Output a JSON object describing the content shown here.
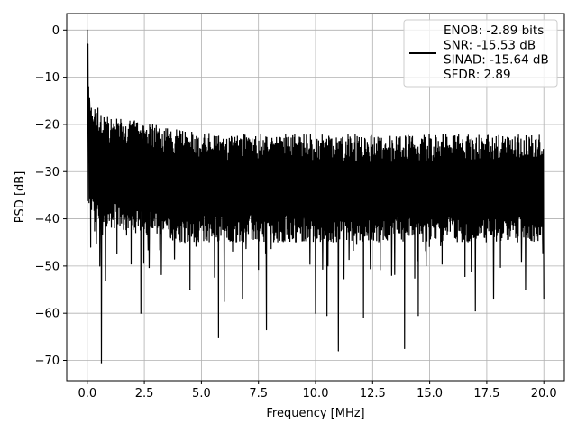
{
  "chart_data": {
    "type": "line",
    "xlabel": "Frequency [MHz]",
    "ylabel": "PSD [dB]",
    "xlim": [
      -0.9,
      20.9
    ],
    "ylim": [
      -74.3,
      3.5
    ],
    "x_ticks": [
      0.0,
      2.5,
      5.0,
      7.5,
      10.0,
      12.5,
      15.0,
      17.5,
      20.0
    ],
    "x_tick_labels": [
      "0.0",
      "2.5",
      "5.0",
      "7.5",
      "10.0",
      "12.5",
      "15.0",
      "17.5",
      "20.0"
    ],
    "y_ticks": [
      0,
      -10,
      -20,
      -30,
      -40,
      -50,
      -60,
      -70
    ],
    "y_tick_labels": [
      "0",
      "−10",
      "−20",
      "−30",
      "−40",
      "−50",
      "−60",
      "−70"
    ],
    "grid": true,
    "legend_position": "top-right",
    "series": [
      {
        "line_color": "#000000",
        "legend_lines": [
          "ENOB: -2.89 bits",
          "SNR: -15.53 dB",
          "SINAD: -15.64 dB",
          "SFDR: 2.89"
        ],
        "x_range": [
          0.0,
          20.0
        ],
        "band_upper": [
          -15,
          -18,
          -19,
          -20,
          -21,
          -21.5,
          -22,
          -22,
          -22,
          -22,
          -22,
          -22,
          -22,
          -22,
          -22,
          -22,
          -22,
          -22,
          -22,
          -22,
          -22
        ],
        "band_lower": [
          -40,
          -42,
          -43,
          -44,
          -45,
          -45,
          -45,
          -45,
          -45,
          -45,
          -45,
          -45,
          -45,
          -45,
          -45,
          -45,
          -45,
          -45,
          -45,
          -45,
          -45
        ],
        "spikes": [
          {
            "x": 0.0,
            "y": 0.0
          },
          {
            "x": 0.03,
            "y": -3.0
          },
          {
            "x": 0.06,
            "y": -12.0
          },
          {
            "x": 0.1,
            "y": -14.5
          },
          {
            "x": 0.15,
            "y": -46.0
          },
          {
            "x": 0.55,
            "y": -50.0
          },
          {
            "x": 0.62,
            "y": -70.5
          },
          {
            "x": 0.8,
            "y": -53.0
          },
          {
            "x": 2.35,
            "y": -60.0
          },
          {
            "x": 4.5,
            "y": -55.0
          },
          {
            "x": 5.75,
            "y": -65.2
          },
          {
            "x": 6.0,
            "y": -57.5
          },
          {
            "x": 6.8,
            "y": -57.0
          },
          {
            "x": 7.85,
            "y": -63.5
          },
          {
            "x": 10.0,
            "y": -60.0
          },
          {
            "x": 10.5,
            "y": -60.5
          },
          {
            "x": 11.0,
            "y": -68.0
          },
          {
            "x": 12.1,
            "y": -61.0
          },
          {
            "x": 13.9,
            "y": -67.5
          },
          {
            "x": 14.5,
            "y": -60.5
          },
          {
            "x": 17.0,
            "y": -59.5
          },
          {
            "x": 17.8,
            "y": -57.0
          },
          {
            "x": 19.2,
            "y": -55.0
          },
          {
            "x": 20.0,
            "y": -57.0
          }
        ]
      }
    ]
  }
}
